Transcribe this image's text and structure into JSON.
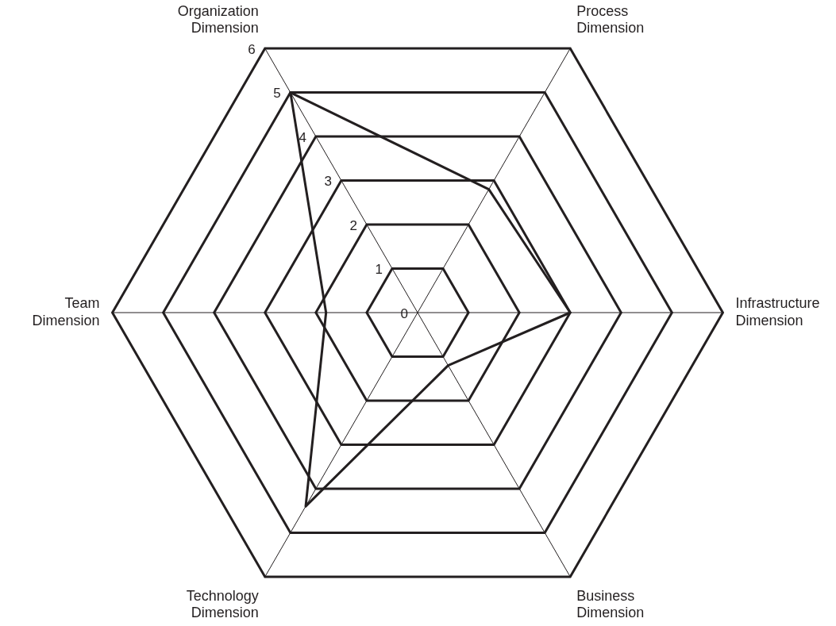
{
  "chart_data": {
    "type": "radar",
    "categories": [
      "Organization Dimension",
      "Process Dimension",
      "Infrastructure Dimension",
      "Business Dimension",
      "Technology Dimension",
      "Team Dimension"
    ],
    "series": [
      {
        "color": "#231f20",
        "values": [
          5,
          2.8,
          3,
          1.2,
          4.4,
          1.8
        ]
      }
    ],
    "ylim": [
      0,
      6
    ],
    "yticks": [
      0,
      1,
      2,
      3,
      4,
      5,
      6
    ],
    "grid": true,
    "legend": false,
    "marker": "none",
    "line_style": "solid"
  }
}
